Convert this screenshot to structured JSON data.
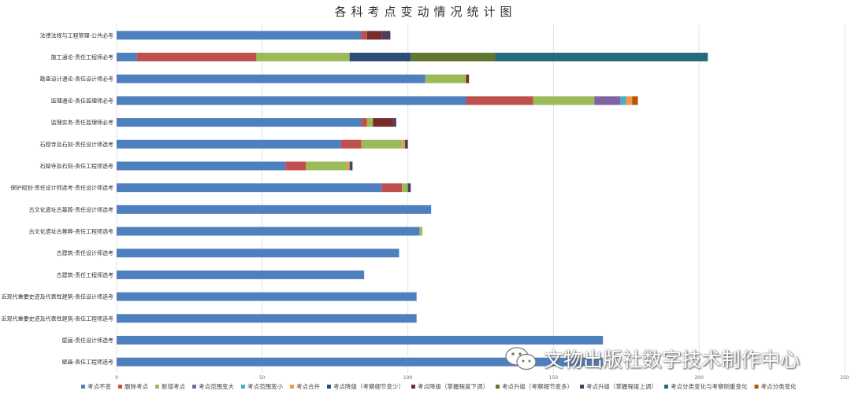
{
  "chart_data": {
    "type": "bar",
    "orientation": "horizontal",
    "stacked": true,
    "title": "各科考点变动情况统计图",
    "xlim": [
      0,
      250
    ],
    "x_ticks": [
      0,
      50,
      100,
      150,
      200,
      250
    ],
    "grid": true,
    "legend_position": "bottom",
    "categories": [
      "法律法规与工程管理-公共必考",
      "施工通论-责任工程师必考",
      "勘查设计通论-责任设计师必考",
      "监理通论-责任监理师必考",
      "监理实务-责任监理师必考",
      "石窟寺及石刻-责任设计师选考",
      "石窟寺及石刻-责任工程师选考",
      "保护规划-责任设计师选考-责任设计师选考",
      "古文化遗址古墓葬-责任设计师选考",
      "古文化遗址古墓葬-责任工程师选考",
      "古建筑-责任设计师选考",
      "古建筑-责任工程师选考",
      "近现代重要史迹及代表性建筑-责任设计师选考",
      "近现代重要史迹及代表性建筑-责任工程师选考",
      "壁画-责任设计师选考",
      "壁画-责任工程师选考"
    ],
    "series": [
      {
        "name": "考点不变",
        "color": "#4e7fbf",
        "values": [
          84,
          7,
          106,
          120,
          84,
          77,
          58,
          91,
          108,
          104,
          97,
          85,
          103,
          103,
          167,
          167
        ]
      },
      {
        "name": "删除考点",
        "color": "#c0504d",
        "values": [
          2,
          41,
          0,
          23,
          2,
          7,
          7,
          7,
          0,
          0,
          0,
          0,
          0,
          0,
          0,
          0
        ]
      },
      {
        "name": "新增考点",
        "color": "#9bbb59",
        "values": [
          0,
          32,
          14,
          21,
          2,
          14,
          14,
          2,
          0,
          1,
          0,
          0,
          0,
          0,
          0,
          0
        ]
      },
      {
        "name": "考点范围变大",
        "color": "#8064a2",
        "values": [
          0,
          0,
          0,
          9,
          0,
          0,
          0,
          0,
          0,
          0,
          0,
          0,
          0,
          0,
          0,
          0
        ]
      },
      {
        "name": "考点范围变小",
        "color": "#4bacc6",
        "values": [
          0,
          0,
          0,
          2,
          0,
          0,
          0,
          0,
          0,
          0,
          0,
          0,
          0,
          0,
          0,
          0
        ]
      },
      {
        "name": "考点合并",
        "color": "#f79646",
        "values": [
          0,
          0,
          0,
          2,
          0,
          1,
          1,
          0,
          0,
          0,
          0,
          0,
          0,
          0,
          0,
          0
        ]
      },
      {
        "name": "考点降级（考察细节变少）",
        "color": "#2c4d75",
        "values": [
          0,
          21,
          0,
          0,
          0,
          1,
          1,
          0,
          0,
          0,
          0,
          0,
          0,
          0,
          0,
          0
        ]
      },
      {
        "name": "考点降级（掌握程度下调）",
        "color": "#772c2a",
        "values": [
          5,
          0,
          1,
          0,
          7,
          0,
          0,
          0,
          0,
          0,
          0,
          0,
          0,
          0,
          0,
          0
        ]
      },
      {
        "name": "考点升级（考察细节变多）",
        "color": "#5f7530",
        "values": [
          0,
          29,
          0,
          0,
          0,
          0,
          0,
          0,
          0,
          0,
          0,
          0,
          0,
          0,
          0,
          0
        ]
      },
      {
        "name": "考点升级（掌握程度上调）",
        "color": "#4d3b62",
        "values": [
          3,
          0,
          0,
          0,
          1,
          0,
          0,
          1,
          0,
          0,
          0,
          0,
          0,
          0,
          0,
          0
        ]
      },
      {
        "name": "考点分类变化与考察侧重变化",
        "color": "#276a7c",
        "values": [
          0,
          73,
          0,
          0,
          0,
          0,
          0,
          0,
          0,
          0,
          0,
          0,
          0,
          0,
          0,
          0
        ]
      },
      {
        "name": "考点分类变化",
        "color": "#b65708",
        "values": [
          0,
          0,
          0,
          2,
          0,
          0,
          0,
          0,
          0,
          0,
          0,
          0,
          0,
          0,
          0,
          0
        ]
      }
    ]
  },
  "watermark": {
    "text": "文物出版社数字技术制作中心",
    "icon": "wechat-icon"
  }
}
